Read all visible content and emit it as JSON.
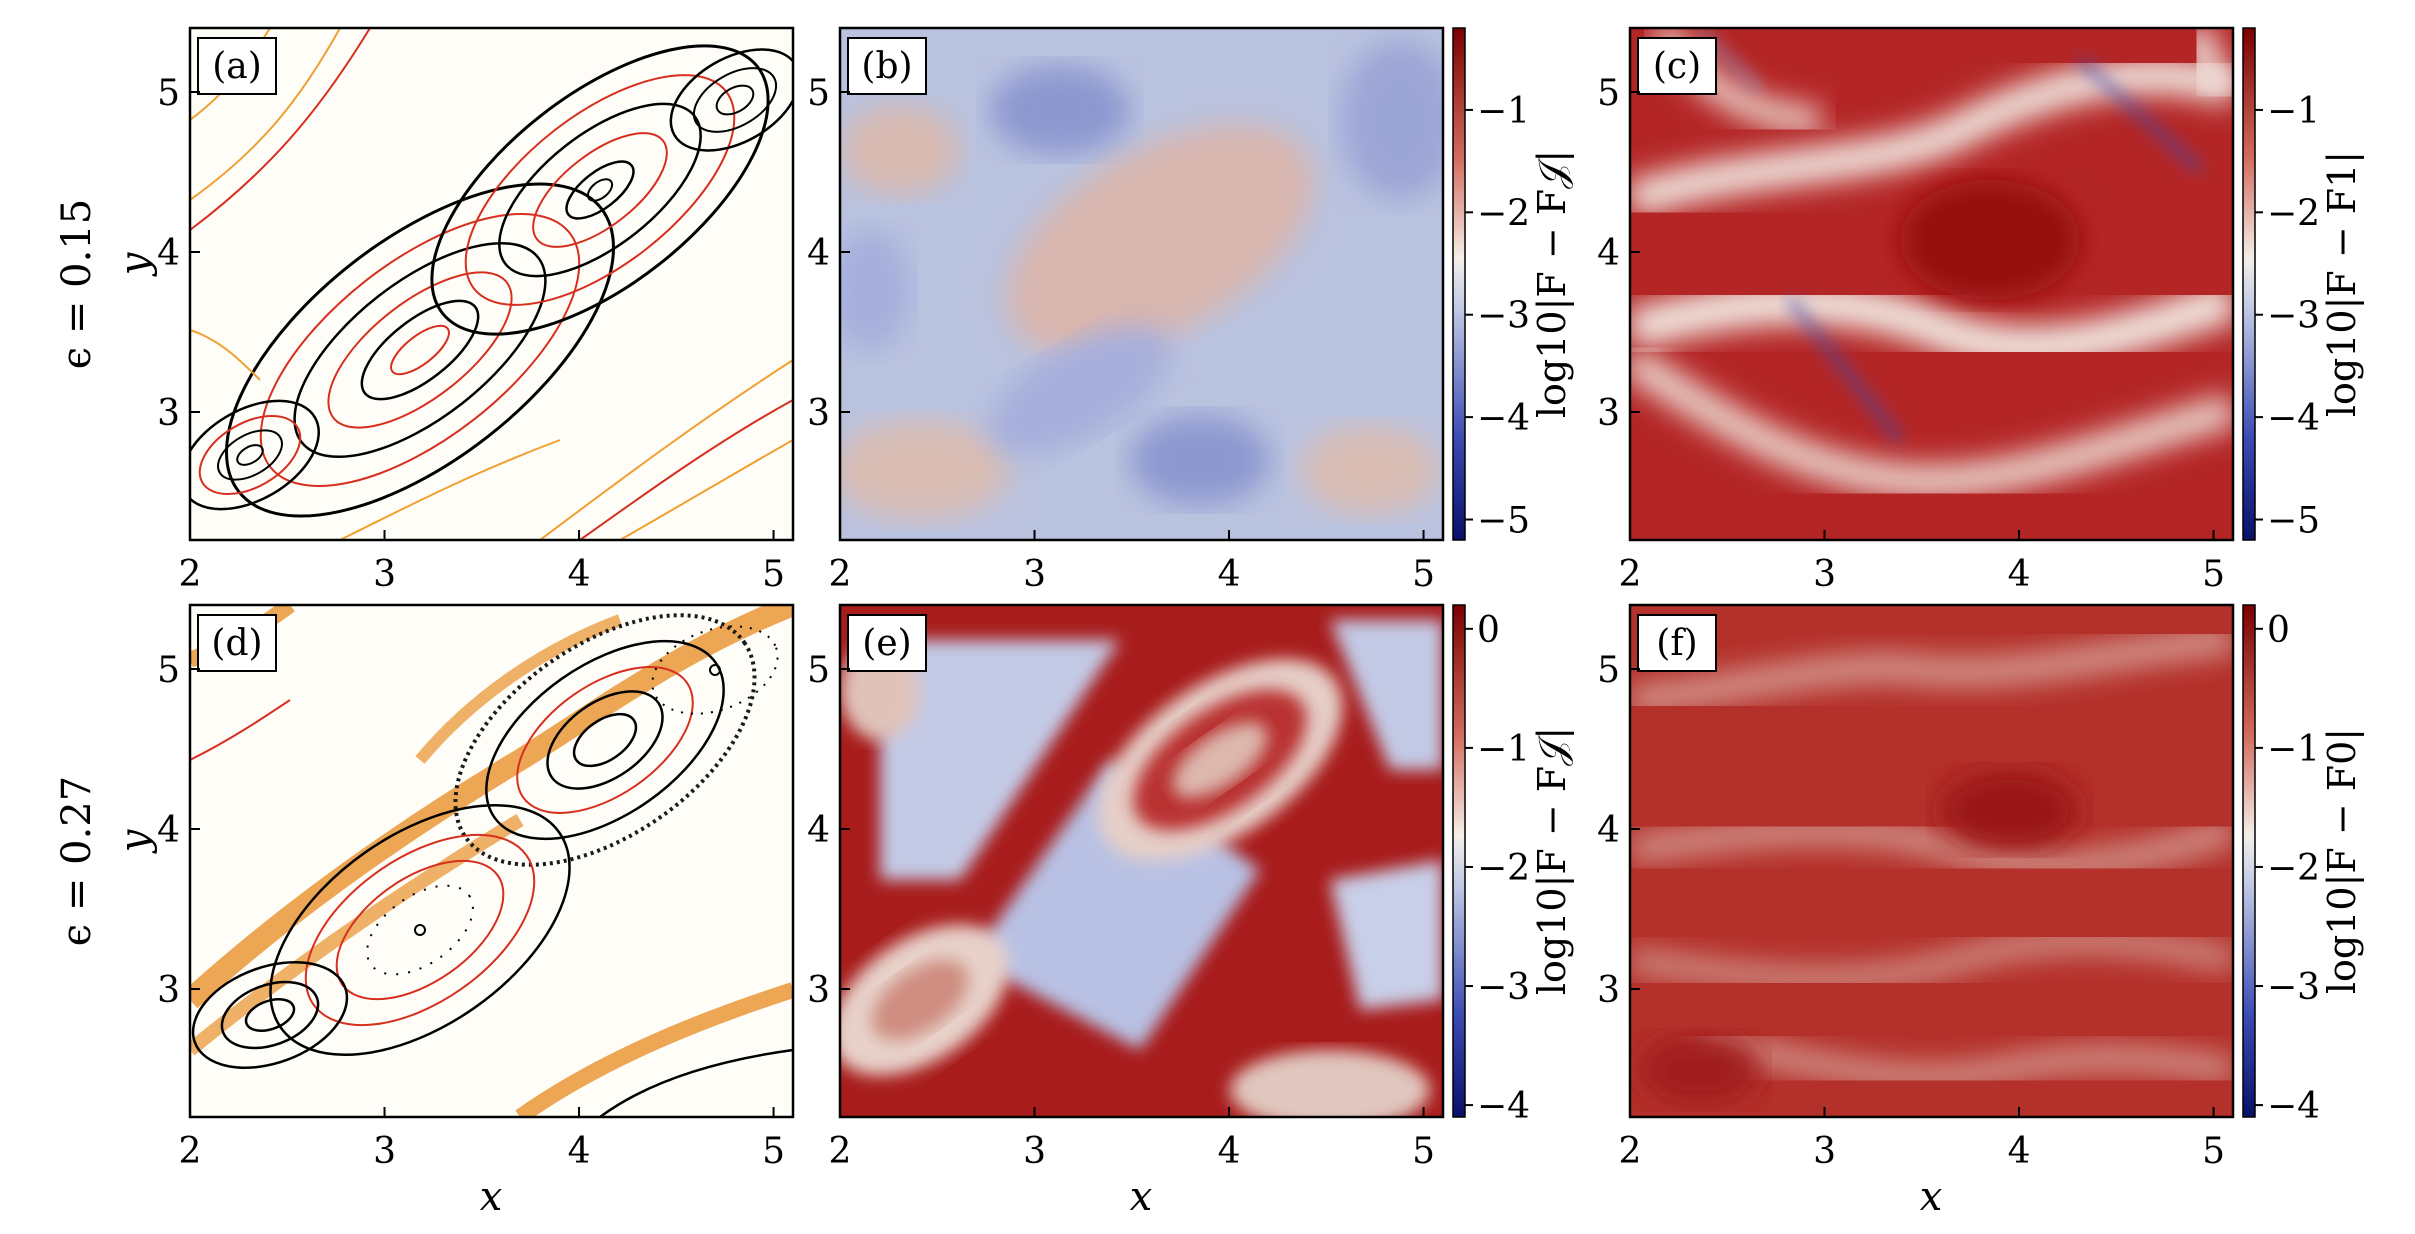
{
  "chart_data": [
    {
      "panel": "(a)",
      "type": "other",
      "description_kind": "Poincare section",
      "row_label": "ϵ = 0.15",
      "xlabel": "",
      "ylabel": "y",
      "xlim": [
        2,
        5.1
      ],
      "ylim": [
        2.2,
        5.4
      ],
      "xticks": [
        2,
        3,
        4,
        5
      ],
      "yticks": [
        3,
        4,
        5
      ],
      "colors": {
        "main": "#000000",
        "secondary": "#d62f1f",
        "tertiary": "#f0a030"
      }
    },
    {
      "panel": "(b)",
      "type": "heatmap",
      "xlabel": "",
      "ylabel": "",
      "xlim": [
        2,
        5.1
      ],
      "ylim": [
        2.2,
        5.4
      ],
      "xticks": [
        2,
        3,
        4,
        5
      ],
      "yticks": [
        3,
        4,
        5
      ],
      "colorbar": {
        "label": "log10|F − F𝒥|",
        "ticks": [
          -1,
          -2,
          -3,
          -4,
          -5
        ],
        "range": [
          -5.2,
          -0.2
        ]
      },
      "colormap": "blue-white-red"
    },
    {
      "panel": "(c)",
      "type": "heatmap",
      "xlabel": "",
      "ylabel": "",
      "xlim": [
        2,
        5.1
      ],
      "ylim": [
        2.2,
        5.4
      ],
      "xticks": [
        2,
        3,
        4,
        5
      ],
      "yticks": [
        3,
        4,
        5
      ],
      "colorbar": {
        "label": "log10|F − F1|",
        "ticks": [
          -1,
          -2,
          -3,
          -4,
          -5
        ],
        "range": [
          -5.2,
          -0.2
        ]
      },
      "colormap": "blue-white-red"
    },
    {
      "panel": "(d)",
      "type": "other",
      "description_kind": "Poincare section",
      "row_label": "ϵ = 0.27",
      "xlabel": "x",
      "ylabel": "y",
      "xlim": [
        2,
        5.1
      ],
      "ylim": [
        2.2,
        5.4
      ],
      "xticks": [
        2,
        3,
        4,
        5
      ],
      "yticks": [
        3,
        4,
        5
      ]
    },
    {
      "panel": "(e)",
      "type": "heatmap",
      "xlabel": "x",
      "ylabel": "",
      "xlim": [
        2,
        5.1
      ],
      "ylim": [
        2.2,
        5.4
      ],
      "xticks": [
        2,
        3,
        4,
        5
      ],
      "yticks": [
        3,
        4,
        5
      ],
      "colorbar": {
        "label": "log10|F − F𝒥|",
        "ticks": [
          0,
          -1,
          -2,
          -3,
          -4
        ],
        "range": [
          -4.1,
          0.2
        ]
      },
      "colormap": "blue-white-red"
    },
    {
      "panel": "(f)",
      "type": "heatmap",
      "xlabel": "x",
      "ylabel": "",
      "xlim": [
        2,
        5.1
      ],
      "ylim": [
        2.2,
        5.4
      ],
      "xticks": [
        2,
        3,
        4,
        5
      ],
      "yticks": [
        3,
        4,
        5
      ],
      "colorbar": {
        "label": "log10|F − F0|",
        "ticks": [
          0,
          -1,
          -2,
          -3,
          -4
        ],
        "range": [
          -4.1,
          0.2
        ]
      },
      "colormap": "blue-white-red"
    }
  ],
  "labels": {
    "row1": "ϵ = 0.15",
    "row2": "ϵ = 0.27",
    "x": "x",
    "y": "y",
    "a": "(a)",
    "b": "(b)",
    "c": "(c)",
    "d": "(d)",
    "e": "(e)",
    "f": "(f)",
    "cb_b": "log10|F − F𝒥|",
    "cb_c": "log10|F − F1|",
    "cb_e": "log10|F − F𝒥|",
    "cb_f": "log10|F − F0|"
  },
  "colors": {
    "dark_red": "#8b0000",
    "red": "#c0302a",
    "pale": "#f4f1ec",
    "blue": "#3342a8",
    "dark_blue": "#0a1470"
  }
}
